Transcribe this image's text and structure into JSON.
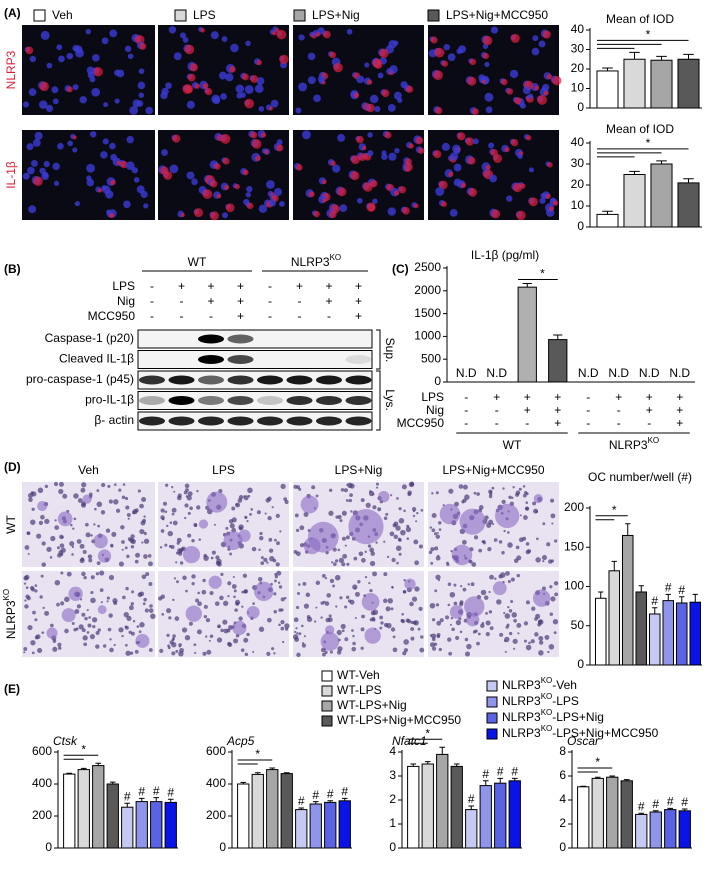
{
  "panel_labels": [
    "(A)",
    "(B)",
    "(C)",
    "(D)",
    "(E)"
  ],
  "panel_a": {
    "legend": [
      {
        "name": "Veh",
        "color": "#ffffff"
      },
      {
        "name": "LPS",
        "color": "#d9d9d9"
      },
      {
        "name": "LPS+Nig",
        "color": "#a6a6a6"
      },
      {
        "name": "LPS+Nig+MCC950",
        "color": "#595959"
      }
    ],
    "row_labels": [
      "NLRP3",
      "IL-1β"
    ]
  },
  "panel_b": {
    "groups": [
      {
        "name": "WT"
      },
      {
        "name": "NLRP3",
        "sup": "KO"
      }
    ],
    "conditions": [
      {
        "label": "LPS",
        "signs": [
          "-",
          "+",
          "+",
          "+",
          "-",
          "+",
          "+",
          "+"
        ]
      },
      {
        "label": "Nig",
        "signs": [
          "-",
          "-",
          "+",
          "+",
          "-",
          "-",
          "+",
          "+"
        ]
      },
      {
        "label": "MCC950",
        "signs": [
          "-",
          "-",
          "-",
          "+",
          "-",
          "-",
          "-",
          "+"
        ]
      }
    ],
    "blot_rows": [
      "Caspase-1 (p20)",
      "Cleaved IL-1β",
      "pro-caspase-1 (p45)",
      "pro-IL-1β",
      "β- actin"
    ],
    "fractions": [
      "Sup.",
      "Lys."
    ]
  },
  "panel_c": {
    "groups": [
      {
        "name": "WT"
      },
      {
        "name": "NLRP3",
        "sup": "KO"
      }
    ],
    "conditions": [
      {
        "label": "LPS",
        "signs": [
          "-",
          "+",
          "+",
          "+",
          "-",
          "+",
          "+",
          "+"
        ]
      },
      {
        "label": "Nig",
        "signs": [
          "-",
          "-",
          "+",
          "+",
          "-",
          "-",
          "+",
          "+"
        ]
      },
      {
        "label": "MCC950",
        "signs": [
          "-",
          "-",
          "-",
          "+",
          "-",
          "-",
          "-",
          "+"
        ]
      }
    ]
  },
  "panel_d": {
    "columns": [
      "Veh",
      "LPS",
      "LPS+Nig",
      "LPS+Nig+MCC950"
    ],
    "rows": [
      {
        "name": "WT"
      },
      {
        "name": "NLRP3",
        "sup": "KO"
      }
    ]
  },
  "panel_e": {
    "legend": [
      {
        "name": "WT-Veh",
        "color": "#ffffff"
      },
      {
        "name": "WT-LPS",
        "color": "#d9d9d9"
      },
      {
        "name": "WT-LPS+Nig",
        "color": "#a6a6a6"
      },
      {
        "name": "WT-LPS+Nig+MCC950",
        "color": "#595959"
      },
      {
        "name": "NLRP3",
        "sup": "KO",
        "suffix": "-Veh",
        "color": "#c6c9f2"
      },
      {
        "name": "NLRP3",
        "sup": "KO",
        "suffix": "-LPS",
        "color": "#8f95eb"
      },
      {
        "name": "NLRP3",
        "sup": "KO",
        "suffix": "-LPS+Nig",
        "color": "#5a63e6"
      },
      {
        "name": "NLRP3",
        "sup": "KO",
        "suffix": "-LPS+Nig+MCC950",
        "color": "#0a14e6"
      }
    ]
  },
  "chart_data": [
    {
      "type": "bar",
      "title": "Mean of IOD",
      "categories": [
        null,
        null,
        null,
        null
      ],
      "values": [
        19,
        25,
        24.5,
        25
      ],
      "errors": [
        1.5,
        3.5,
        2,
        2.5
      ],
      "colors": [
        "#ffffff",
        "#d9d9d9",
        "#a6a6a6",
        "#595959"
      ],
      "ylim": [
        0,
        40
      ],
      "yticks": [
        0,
        10,
        20,
        30,
        40
      ],
      "annotation": "*"
    },
    {
      "type": "bar",
      "title": "Mean of IOD",
      "categories": [
        null,
        null,
        null,
        null
      ],
      "values": [
        6,
        25,
        30,
        21
      ],
      "errors": [
        1.5,
        1.5,
        1.5,
        2
      ],
      "colors": [
        "#ffffff",
        "#d9d9d9",
        "#a6a6a6",
        "#595959"
      ],
      "ylim": [
        0,
        40
      ],
      "yticks": [
        0,
        10,
        20,
        30,
        40
      ],
      "annotation": "*"
    },
    {
      "type": "bar",
      "title": "IL-1β (pg/ml)",
      "categories": [
        null,
        null,
        null,
        null,
        null,
        null,
        null,
        null
      ],
      "values": [
        null,
        null,
        2080,
        930,
        null,
        null,
        null,
        null
      ],
      "value_labels": [
        "N.D",
        "N.D",
        null,
        null,
        "N.D",
        "N.D",
        "N.D",
        "N.D"
      ],
      "errors": [
        null,
        null,
        80,
        100,
        null,
        null,
        null,
        null
      ],
      "colors": [
        "#ffffff",
        "#ffffff",
        "#b0b0b0",
        "#595959",
        "#ffffff",
        "#ffffff",
        "#ffffff",
        "#ffffff"
      ],
      "ylim": [
        0,
        2500
      ],
      "yticks": [
        0,
        500,
        1000,
        1500,
        2000,
        2500
      ],
      "annotation": "*"
    },
    {
      "type": "bar",
      "title": "OC number/well (#)",
      "categories": [
        null,
        null,
        null,
        null,
        null,
        null,
        null,
        null
      ],
      "values": [
        85,
        120,
        165,
        93,
        65,
        82,
        79,
        80
      ],
      "errors": [
        8,
        12,
        15,
        8,
        8,
        8,
        8,
        10
      ],
      "markers": [
        null,
        null,
        null,
        null,
        "#",
        "#",
        "#",
        null
      ],
      "colors": [
        "#ffffff",
        "#d9d9d9",
        "#a6a6a6",
        "#595959",
        "#c6c9f2",
        "#8f95eb",
        "#5a63e6",
        "#0a14e6"
      ],
      "ylim": [
        0,
        200
      ],
      "yticks": [
        0,
        50,
        100,
        150,
        200
      ],
      "annotation": "*"
    },
    {
      "type": "bar",
      "title": "Ctsk",
      "categories": [
        null,
        null,
        null,
        null,
        null,
        null,
        null,
        null
      ],
      "values": [
        462,
        490,
        515,
        400,
        255,
        290,
        290,
        285
      ],
      "errors": [
        5,
        8,
        15,
        12,
        25,
        20,
        25,
        20
      ],
      "markers": [
        null,
        null,
        null,
        null,
        "#",
        "#",
        "#",
        "#"
      ],
      "colors": [
        "#ffffff",
        "#d9d9d9",
        "#a6a6a6",
        "#595959",
        "#c6c9f2",
        "#8f95eb",
        "#5a63e6",
        "#0a14e6"
      ],
      "ylim": [
        0,
        600
      ],
      "yticks": [
        0,
        200,
        400,
        600
      ],
      "annotation": "*"
    },
    {
      "type": "bar",
      "title": "Acp5",
      "categories": [
        null,
        null,
        null,
        null,
        null,
        null,
        null,
        null
      ],
      "values": [
        400,
        460,
        490,
        465,
        240,
        275,
        285,
        295
      ],
      "errors": [
        10,
        10,
        10,
        5,
        10,
        15,
        10,
        15
      ],
      "markers": [
        null,
        null,
        null,
        null,
        "#",
        "#",
        "#",
        "#"
      ],
      "colors": [
        "#ffffff",
        "#d9d9d9",
        "#a6a6a6",
        "#595959",
        "#c6c9f2",
        "#8f95eb",
        "#5a63e6",
        "#0a14e6"
      ],
      "ylim": [
        0,
        600
      ],
      "yticks": [
        0,
        200,
        400,
        600
      ],
      "annotation": "*"
    },
    {
      "type": "bar",
      "title": "Nfatc1",
      "categories": [
        null,
        null,
        null,
        null,
        null,
        null,
        null,
        null
      ],
      "values": [
        3.4,
        3.5,
        3.9,
        3.4,
        1.6,
        2.6,
        2.7,
        2.8
      ],
      "errors": [
        0.1,
        0.1,
        0.3,
        0.1,
        0.15,
        0.2,
        0.2,
        0.1
      ],
      "markers": [
        null,
        null,
        null,
        null,
        "#",
        "#",
        "#",
        "#"
      ],
      "colors": [
        "#ffffff",
        "#d9d9d9",
        "#a6a6a6",
        "#595959",
        "#c6c9f2",
        "#8f95eb",
        "#5a63e6",
        "#0a14e6"
      ],
      "ylim": [
        0,
        4
      ],
      "yticks": [
        0,
        1,
        2,
        3,
        4
      ],
      "annotation": "*"
    },
    {
      "type": "bar",
      "title": "Oscar",
      "categories": [
        null,
        null,
        null,
        null,
        null,
        null,
        null,
        null
      ],
      "values": [
        5.1,
        5.8,
        5.9,
        5.6,
        2.8,
        3.0,
        3.2,
        3.1
      ],
      "errors": [
        0.05,
        0.1,
        0.1,
        0.1,
        0.1,
        0.1,
        0.1,
        0.15
      ],
      "markers": [
        null,
        null,
        null,
        null,
        "#",
        "#",
        "#",
        "#"
      ],
      "colors": [
        "#ffffff",
        "#d9d9d9",
        "#a6a6a6",
        "#595959",
        "#c6c9f2",
        "#8f95eb",
        "#5a63e6",
        "#0a14e6"
      ],
      "ylim": [
        0,
        8
      ],
      "yticks": [
        0,
        2,
        4,
        6,
        8
      ],
      "annotation": "*"
    }
  ]
}
